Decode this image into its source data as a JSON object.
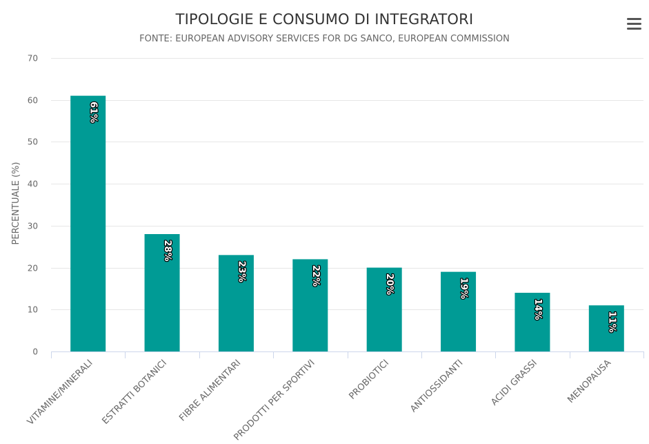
{
  "header": {
    "title": "TIPOLOGIE E CONSUMO DI INTEGRATORI",
    "subtitle": "FONTE: EUROPEAN ADVISORY SERVICES FOR DG SANCO, EUROPEAN COMMISSION"
  },
  "menu": {
    "icon": "hamburger-menu-icon"
  },
  "chart_data": {
    "type": "bar",
    "title": "TIPOLOGIE E CONSUMO DI INTEGRATORI",
    "subtitle": "FONTE: EUROPEAN ADVISORY SERVICES FOR DG SANCO, EUROPEAN COMMISSION",
    "xlabel": "",
    "ylabel": "PERCENTUALE (%)",
    "categories": [
      "VITAMINE/MINERALI",
      "ESTRATTI BOTANICI",
      "FIBRE ALIMENTARI",
      "PRODOTTI PER SPORTIVI",
      "PROBIOTICI",
      "ANTIOSSIDANTI",
      "ACIDI GRASSI",
      "MENOPAUSA"
    ],
    "values": [
      61,
      28,
      23,
      22,
      20,
      19,
      14,
      11
    ],
    "data_labels": [
      "61%",
      "28%",
      "23%",
      "22%",
      "20%",
      "19%",
      "14%",
      "11%"
    ],
    "ylim": [
      0,
      70
    ],
    "yticks": [
      0,
      10,
      20,
      30,
      40,
      50,
      60,
      70
    ],
    "grid": true,
    "legend": false,
    "bar_color": "#009B95"
  }
}
